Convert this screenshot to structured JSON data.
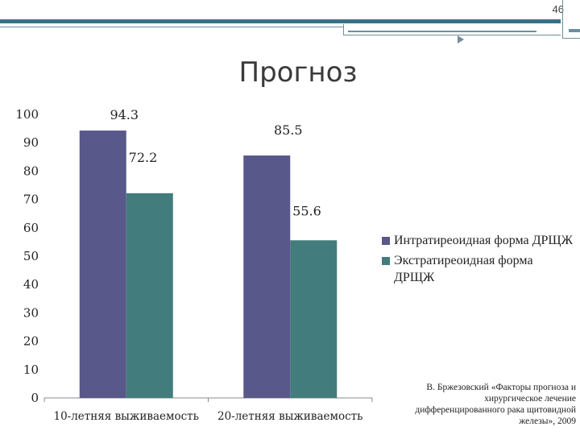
{
  "slide_number": "46",
  "title": "Прогноз",
  "citation": "В. Бржезовский «Факторы прогноза и хирургическое лечение дифференцированного рака щитовидной железы», 2009",
  "colors": {
    "series1": "#58588a",
    "series2": "#427c7c",
    "accent": "#3e6e86"
  },
  "chart_data": {
    "type": "bar",
    "categories": [
      "10-летняя выживаемость",
      "20-летняя выживаемость"
    ],
    "series": [
      {
        "name": "Интратиреоидная форма ДРЩЖ",
        "values": [
          94.3,
          85.5
        ],
        "color": "#58588a"
      },
      {
        "name": "Экстратиреоидная форма ДРЩЖ",
        "values": [
          72.2,
          55.6
        ],
        "color": "#427c7c"
      }
    ],
    "data_labels": [
      [
        "94.3",
        "85.5"
      ],
      [
        "72.2",
        "55.6"
      ]
    ],
    "ylim": [
      0,
      100
    ],
    "yticks": [
      0,
      10,
      20,
      30,
      40,
      50,
      60,
      70,
      80,
      90,
      100
    ],
    "grid": false,
    "legend_position": "right"
  }
}
